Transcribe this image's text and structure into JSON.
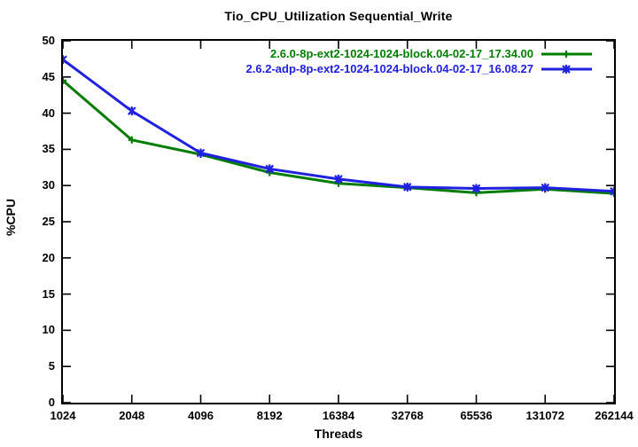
{
  "chart_data": {
    "type": "line",
    "title": "Tio_CPU_Utilization Sequential_Write",
    "xlabel": "Threads",
    "ylabel": "%CPU",
    "x_scale": "log2",
    "categories": [
      "1024",
      "2048",
      "4096",
      "8192",
      "16384",
      "32768",
      "65536",
      "131072",
      "262144"
    ],
    "y_ticks": [
      "0",
      "5",
      "10",
      "15",
      "20",
      "25",
      "30",
      "35",
      "40",
      "45",
      "50"
    ],
    "ylim": [
      0,
      50
    ],
    "grid": false,
    "legend_position": "top-right-inside",
    "frame_color": "#000000",
    "series": [
      {
        "name": "2.6.0-8p-ext2-1024-1024-block.04-02-17_17.34.00",
        "color": "#007d00",
        "marker": "plus",
        "values": [
          44.5,
          36.3,
          34.3,
          31.8,
          30.3,
          29.7,
          29.0,
          29.5,
          28.9
        ]
      },
      {
        "name": "2.6.2-adp-8p-ext2-1024-1024-block.04-02-17_16.08.27",
        "color": "#2020e0",
        "marker": "cross",
        "values": [
          47.4,
          40.3,
          34.5,
          32.3,
          30.9,
          29.8,
          29.6,
          29.7,
          29.2
        ]
      }
    ]
  }
}
